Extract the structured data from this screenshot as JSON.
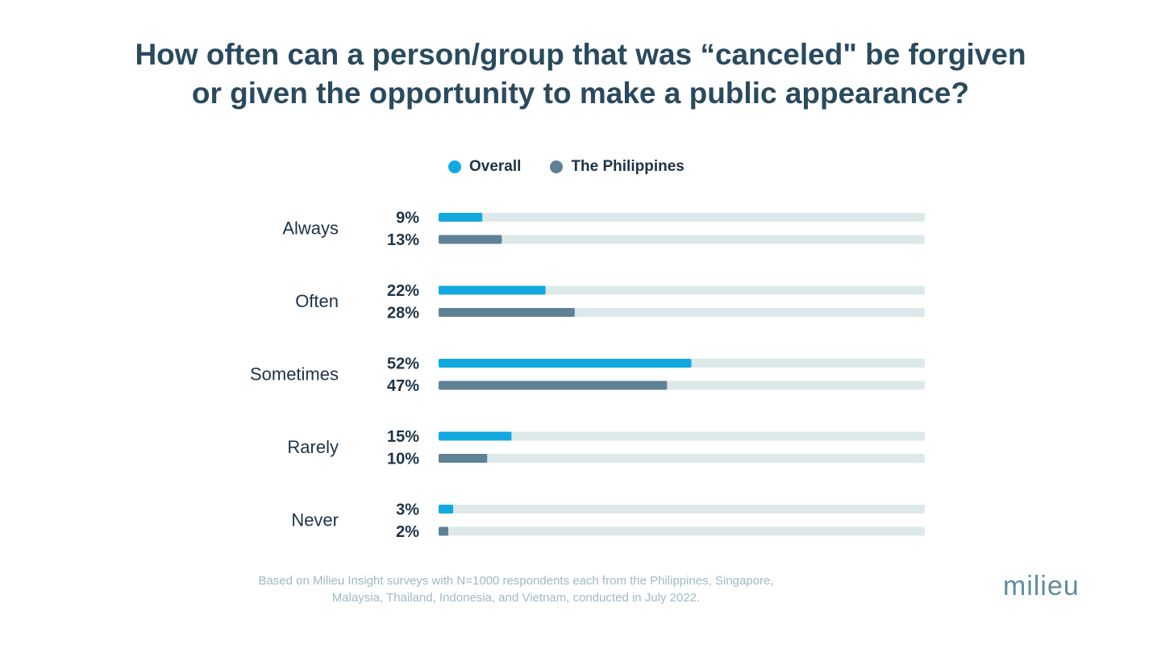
{
  "chart_data": {
    "type": "bar",
    "orientation": "horizontal",
    "title": "How often can a person/group that was “canceled\" be forgiven or given the opportunity to make a public appearance?",
    "title_lines": [
      "How often can a person/group that was “canceled\" be forgiven",
      "or given the opportunity to make a public appearance?"
    ],
    "categories": [
      "Always",
      "Often",
      "Sometimes",
      "Rarely",
      "Never"
    ],
    "series": [
      {
        "name": "Overall",
        "color": "#12a9df",
        "values": [
          9,
          22,
          52,
          15,
          3
        ],
        "labels": [
          "9%",
          "22%",
          "52%",
          "15%",
          "3%"
        ]
      },
      {
        "name": "The Philippines",
        "color": "#5f8196",
        "values": [
          13,
          28,
          47,
          10,
          2
        ],
        "labels": [
          "13%",
          "28%",
          "47%",
          "10%",
          "2%"
        ]
      }
    ],
    "xlim": [
      0,
      100
    ],
    "track_color": "#dde9e9",
    "grid": false,
    "legend_position": "top-center",
    "xlabel": "",
    "ylabel": ""
  },
  "footer": {
    "line1": "Based on Milieu Insight surveys with N=1000 respondents each from the Philippines, Singapore,",
    "line2": "Malaysia, Thailand, Indonesia, and Vietnam, conducted in July 2022."
  },
  "logo": "milieu"
}
